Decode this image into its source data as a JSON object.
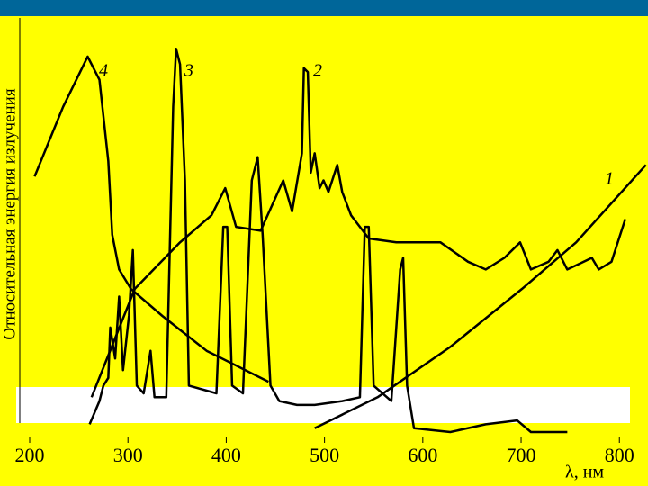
{
  "chart_data": {
    "type": "line",
    "y_label": "Относительная энергия излучения",
    "x_label": "λ, нм",
    "xlim": [
      200,
      830
    ],
    "xticks": [
      200,
      300,
      400,
      500,
      600,
      700,
      800
    ],
    "ylim": [
      0,
      100
    ],
    "series": [
      {
        "name": "1",
        "color": "#000000",
        "x": [
          490,
          554,
          628,
          701,
          756,
          827
        ],
        "values": [
          1,
          9,
          22,
          37,
          49,
          69
        ]
      },
      {
        "name": "2",
        "color": "#000000",
        "x": [
          263,
          307,
          353,
          385,
          399,
          410,
          435,
          458,
          467,
          477,
          479,
          483,
          486,
          490,
          495,
          499,
          504,
          513,
          518,
          527,
          545,
          573,
          600,
          618,
          646,
          664,
          683,
          699,
          710,
          728,
          737,
          747,
          772,
          779,
          792,
          806
        ],
        "values": [
          9,
          37,
          49,
          56,
          63,
          53,
          52,
          65,
          57,
          72,
          94,
          93,
          67,
          72,
          63,
          65,
          62,
          69,
          62,
          56,
          50,
          49,
          49,
          49,
          44,
          42,
          45,
          49,
          42,
          44,
          47,
          42,
          45,
          42,
          44,
          55
        ]
      },
      {
        "name": "3",
        "color": "#000000",
        "x": [
          261,
          271,
          275,
          280,
          282,
          287,
          291,
          295,
          301,
          305,
          309,
          316,
          323,
          327,
          339,
          346,
          349,
          353,
          358,
          362,
          390,
          397,
          401,
          406,
          417,
          426,
          432,
          437,
          445,
          454,
          472,
          490,
          518,
          536,
          541,
          545,
          550,
          568,
          577,
          580,
          584,
          591,
          628,
          664,
          696,
          710,
          747
        ],
        "values": [
          2,
          8,
          12,
          14,
          27,
          19,
          35,
          16,
          30,
          47,
          12,
          10,
          21,
          9,
          9,
          84,
          99,
          95,
          65,
          12,
          10,
          53,
          53,
          12,
          10,
          65,
          71,
          51,
          12,
          8,
          7,
          7,
          8,
          9,
          53,
          53,
          12,
          8,
          42,
          45,
          12,
          1,
          0,
          2,
          3,
          0,
          0
        ]
      },
      {
        "name": "4",
        "color": "#000000",
        "x": [
          205,
          234,
          259,
          271,
          280,
          284,
          291,
          303,
          335,
          380,
          443
        ],
        "values": [
          66,
          84,
          97,
          91,
          70,
          51,
          42,
          37,
          30,
          21,
          13
        ]
      }
    ]
  }
}
